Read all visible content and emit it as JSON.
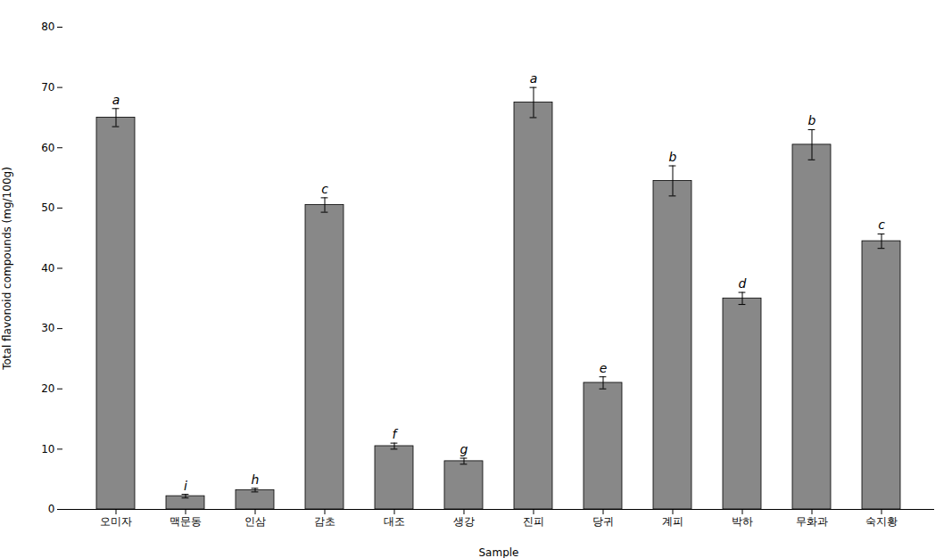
{
  "chart_data": {
    "type": "bar",
    "categories": [
      "오미자",
      "맥문동",
      "인삼",
      "감초",
      "대조",
      "생강",
      "진피",
      "당귀",
      "계피",
      "박하",
      "무화과",
      "숙지황"
    ],
    "values": [
      65.0,
      2.2,
      3.2,
      50.5,
      10.5,
      8.0,
      67.5,
      21.0,
      54.5,
      35.0,
      60.5,
      44.5
    ],
    "errors": [
      1.5,
      0.3,
      0.3,
      1.2,
      0.5,
      0.5,
      2.5,
      1.0,
      2.5,
      1.0,
      2.5,
      1.2
    ],
    "letters": [
      "a",
      "i",
      "h",
      "c",
      "f",
      "g",
      "a",
      "e",
      "b",
      "d",
      "b",
      "c"
    ],
    "color": "#888888",
    "xlabel": "Sample",
    "ylabel": "Total flavonoid compounds (mg/100g)",
    "ylim": [
      0,
      80
    ],
    "yticks": [
      0,
      10,
      20,
      30,
      40,
      50,
      60,
      70,
      80
    ],
    "grid": false
  }
}
